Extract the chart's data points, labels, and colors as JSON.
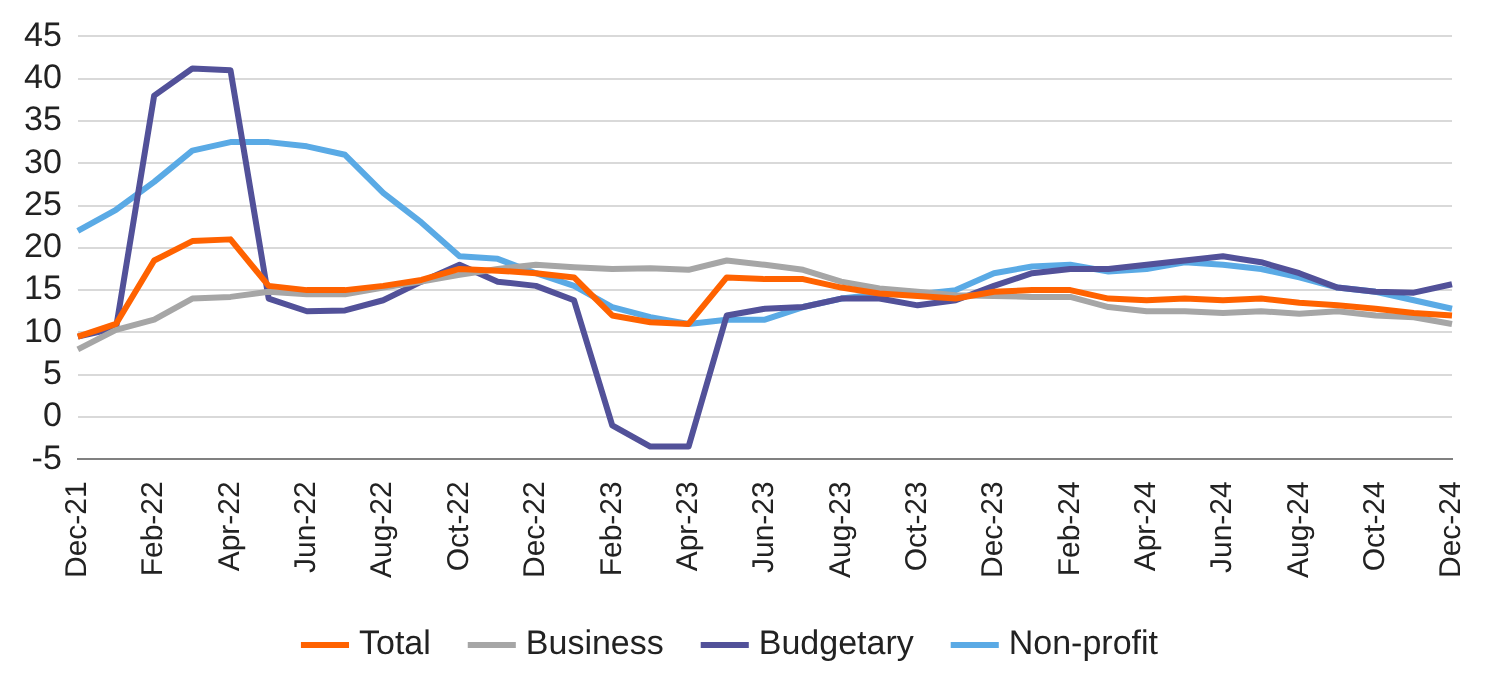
{
  "chart_data": {
    "type": "line",
    "categories": [
      "Dec-21",
      null,
      "Feb-22",
      null,
      "Apr-22",
      null,
      "Jun-22",
      null,
      "Aug-22",
      null,
      "Oct-22",
      null,
      "Dec-22",
      null,
      "Feb-23",
      null,
      "Apr-23",
      null,
      "Jun-23",
      null,
      "Aug-23",
      null,
      "Oct-23",
      null,
      "Dec-23",
      null,
      "Feb-24",
      null,
      "Apr-24",
      null,
      "Jun-24",
      null,
      "Aug-24",
      null,
      "Oct-24",
      null,
      "Dec-24"
    ],
    "series": [
      {
        "name": "Total",
        "color": "#ff6200",
        "values": [
          9.5,
          11,
          18.5,
          20.8,
          21,
          15.5,
          15,
          15,
          15.5,
          16.2,
          17.5,
          17.3,
          17,
          16.5,
          12,
          11.2,
          11,
          16.5,
          16.3,
          16.3,
          15.3,
          14.6,
          14.3,
          14,
          14.8,
          15,
          15,
          14,
          13.8,
          14,
          13.8,
          14,
          13.5,
          13.2,
          12.8,
          12.3,
          12
        ]
      },
      {
        "name": "Business",
        "color": "#a6a6a6",
        "values": [
          8,
          10.3,
          11.5,
          14,
          14.2,
          14.8,
          14.5,
          14.5,
          15.3,
          16,
          16.8,
          17.5,
          18,
          17.7,
          17.5,
          17.6,
          17.4,
          18.5,
          18,
          17.4,
          16,
          15.2,
          14.8,
          14.4,
          14.3,
          14.2,
          14.2,
          13,
          12.5,
          12.5,
          12.3,
          12.5,
          12.2,
          12.5,
          12,
          11.8,
          11
        ]
      },
      {
        "name": "Budgetary",
        "color": "#525199",
        "values": [
          9.5,
          10.5,
          38,
          41.2,
          41,
          14,
          12.5,
          12.6,
          13.8,
          16,
          18,
          16,
          15.5,
          13.8,
          -1,
          -3.5,
          -3.5,
          12,
          12.8,
          13,
          14,
          14,
          13.2,
          13.8,
          15.5,
          17,
          17.5,
          17.5,
          18,
          18.5,
          19,
          18.3,
          17,
          15.3,
          14.8,
          14.7,
          15.7
        ]
      },
      {
        "name": "Non-profit",
        "color": "#5aaae5",
        "values": [
          22,
          24.5,
          27.8,
          31.5,
          32.5,
          32.5,
          32,
          31,
          26.5,
          23,
          19,
          18.7,
          17,
          15.5,
          13,
          11.8,
          11,
          11.5,
          11.5,
          13,
          14,
          14.5,
          14.5,
          15,
          17,
          17.8,
          18,
          17.2,
          17.5,
          18.3,
          18,
          17.5,
          16.5,
          15.3,
          14.8,
          13.8,
          12.8
        ]
      }
    ],
    "ylim": [
      -5,
      45
    ],
    "yticks": [
      -5,
      0,
      5,
      10,
      15,
      20,
      25,
      30,
      35,
      40,
      45
    ],
    "grid": "y",
    "legend": "bottom",
    "marker": "none",
    "line_style": "solid"
  }
}
